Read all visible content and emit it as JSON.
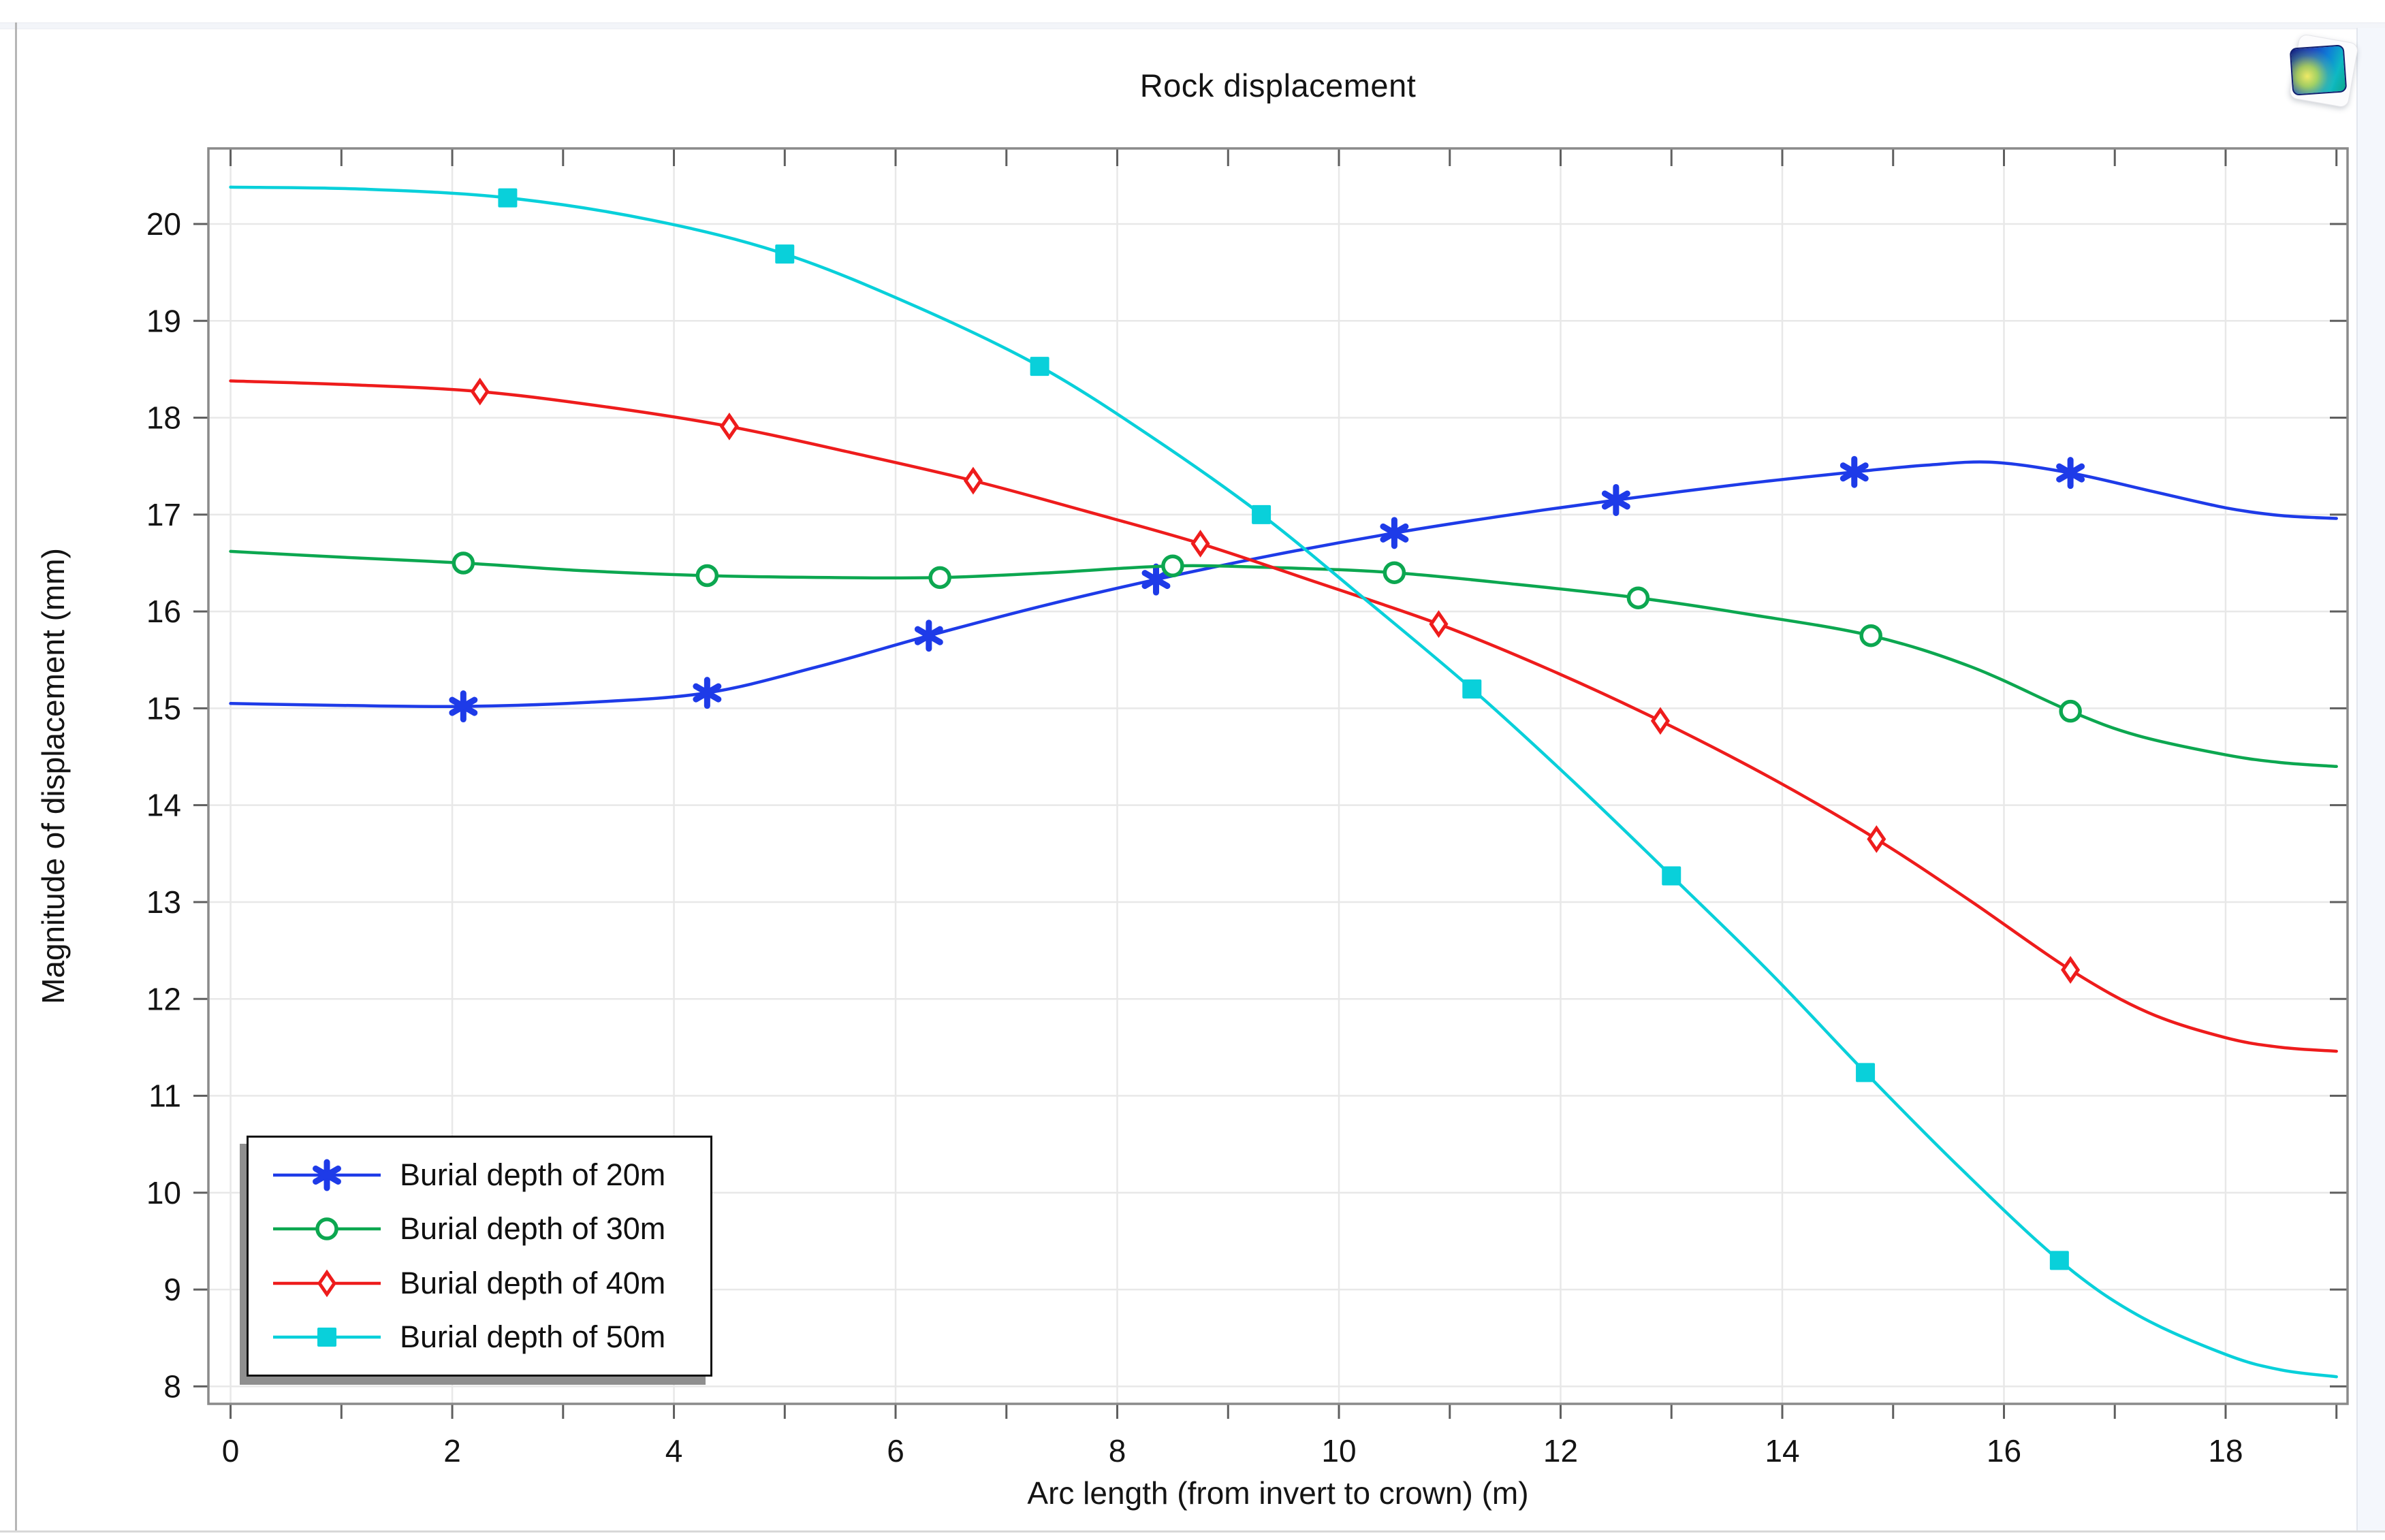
{
  "window": {
    "background": "#ffffff"
  },
  "toolbar": {
    "snapshot_icon": "comsol-snapshot-icon"
  },
  "chart_data": {
    "type": "line",
    "title": "Rock displacement",
    "xlabel": "Arc length (from invert to crown) (m)",
    "ylabel": "Magnitude of displacement (mm)",
    "xlim": [
      -0.2,
      19.1
    ],
    "ylim": [
      7.82,
      20.78
    ],
    "x_major_ticks": [
      0,
      2,
      4,
      6,
      8,
      10,
      12,
      14,
      16,
      18
    ],
    "x_minor_step": 1,
    "y_ticks": [
      8,
      9,
      10,
      11,
      12,
      13,
      14,
      15,
      16,
      17,
      18,
      19,
      20
    ],
    "grid": true,
    "grid_color": "#e8e8e8",
    "frame_color": "#8a8a8a",
    "tick_color": "#5f5f5f",
    "legend": {
      "position": "bottom-left"
    },
    "series": [
      {
        "name": "Burial depth of 20m",
        "color": "#1e3be8",
        "marker": "asterisk",
        "points": [
          [
            0,
            15.05
          ],
          [
            1.0,
            15.03
          ],
          [
            2.1,
            15.02
          ],
          [
            3.2,
            15.06
          ],
          [
            4.3,
            15.16
          ],
          [
            5.3,
            15.43
          ],
          [
            6.3,
            15.75
          ],
          [
            7.3,
            16.05
          ],
          [
            8.35,
            16.33
          ],
          [
            9.4,
            16.58
          ],
          [
            10.5,
            16.81
          ],
          [
            11.5,
            16.99
          ],
          [
            12.5,
            17.15
          ],
          [
            13.6,
            17.31
          ],
          [
            14.65,
            17.44
          ],
          [
            15.3,
            17.51
          ],
          [
            15.9,
            17.54
          ],
          [
            16.6,
            17.43
          ],
          [
            17.3,
            17.25
          ],
          [
            18.0,
            17.07
          ],
          [
            18.5,
            16.99
          ],
          [
            19.0,
            16.96
          ]
        ],
        "marker_points": [
          [
            2.1,
            15.02
          ],
          [
            4.3,
            15.16
          ],
          [
            6.3,
            15.75
          ],
          [
            8.35,
            16.33
          ],
          [
            10.5,
            16.81
          ],
          [
            12.5,
            17.15
          ],
          [
            14.65,
            17.44
          ],
          [
            16.6,
            17.43
          ]
        ]
      },
      {
        "name": "Burial depth of 30m",
        "color": "#0ca750",
        "marker": "circle",
        "points": [
          [
            0,
            16.62
          ],
          [
            1.0,
            16.56
          ],
          [
            2.1,
            16.5
          ],
          [
            3.2,
            16.42
          ],
          [
            4.3,
            16.37
          ],
          [
            5.4,
            16.35
          ],
          [
            6.4,
            16.35
          ],
          [
            7.4,
            16.4
          ],
          [
            8.5,
            16.47
          ],
          [
            9.5,
            16.45
          ],
          [
            10.5,
            16.4
          ],
          [
            11.6,
            16.28
          ],
          [
            12.7,
            16.14
          ],
          [
            13.7,
            15.97
          ],
          [
            14.8,
            15.75
          ],
          [
            15.7,
            15.43
          ],
          [
            16.6,
            14.97
          ],
          [
            17.2,
            14.72
          ],
          [
            18.0,
            14.52
          ],
          [
            18.5,
            14.44
          ],
          [
            19.0,
            14.4
          ]
        ],
        "marker_points": [
          [
            2.1,
            16.5
          ],
          [
            4.3,
            16.37
          ],
          [
            6.4,
            16.35
          ],
          [
            8.5,
            16.47
          ],
          [
            10.5,
            16.4
          ],
          [
            12.7,
            16.14
          ],
          [
            14.8,
            15.75
          ],
          [
            16.6,
            14.97
          ]
        ]
      },
      {
        "name": "Burial depth of 40m",
        "color": "#ee1c1c",
        "marker": "diamond",
        "points": [
          [
            0,
            18.38
          ],
          [
            1.1,
            18.34
          ],
          [
            2.25,
            18.27
          ],
          [
            3.4,
            18.11
          ],
          [
            4.5,
            17.91
          ],
          [
            5.6,
            17.64
          ],
          [
            6.7,
            17.35
          ],
          [
            7.7,
            17.04
          ],
          [
            8.75,
            16.7
          ],
          [
            9.8,
            16.3
          ],
          [
            10.9,
            15.87
          ],
          [
            11.9,
            15.4
          ],
          [
            12.9,
            14.87
          ],
          [
            13.9,
            14.28
          ],
          [
            14.85,
            13.65
          ],
          [
            15.7,
            13.01
          ],
          [
            16.6,
            12.3
          ],
          [
            17.3,
            11.86
          ],
          [
            18.0,
            11.6
          ],
          [
            18.5,
            11.5
          ],
          [
            19.0,
            11.46
          ]
        ],
        "marker_points": [
          [
            2.25,
            18.27
          ],
          [
            4.5,
            17.91
          ],
          [
            6.7,
            17.35
          ],
          [
            8.75,
            16.7
          ],
          [
            10.9,
            15.87
          ],
          [
            12.9,
            14.87
          ],
          [
            14.85,
            13.65
          ],
          [
            16.6,
            12.3
          ]
        ]
      },
      {
        "name": "Burial depth of 50m",
        "color": "#09d0da",
        "marker": "square",
        "points": [
          [
            0,
            20.38
          ],
          [
            1.2,
            20.36
          ],
          [
            2.5,
            20.27
          ],
          [
            3.8,
            20.04
          ],
          [
            5.0,
            19.69
          ],
          [
            6.2,
            19.14
          ],
          [
            7.3,
            18.53
          ],
          [
            8.3,
            17.81
          ],
          [
            9.3,
            17.0
          ],
          [
            10.2,
            16.16
          ],
          [
            11.2,
            15.2
          ],
          [
            12.1,
            14.26
          ],
          [
            13.0,
            13.27
          ],
          [
            13.9,
            12.26
          ],
          [
            14.75,
            11.24
          ],
          [
            15.6,
            10.26
          ],
          [
            16.5,
            9.3
          ],
          [
            17.2,
            8.74
          ],
          [
            18.0,
            8.33
          ],
          [
            18.5,
            8.17
          ],
          [
            19.0,
            8.1
          ]
        ],
        "marker_points": [
          [
            2.5,
            20.27
          ],
          [
            5.0,
            19.69
          ],
          [
            7.3,
            18.53
          ],
          [
            9.3,
            17.0
          ],
          [
            11.2,
            15.2
          ],
          [
            13.0,
            13.27
          ],
          [
            14.75,
            11.24
          ],
          [
            16.5,
            9.3
          ]
        ]
      }
    ]
  }
}
